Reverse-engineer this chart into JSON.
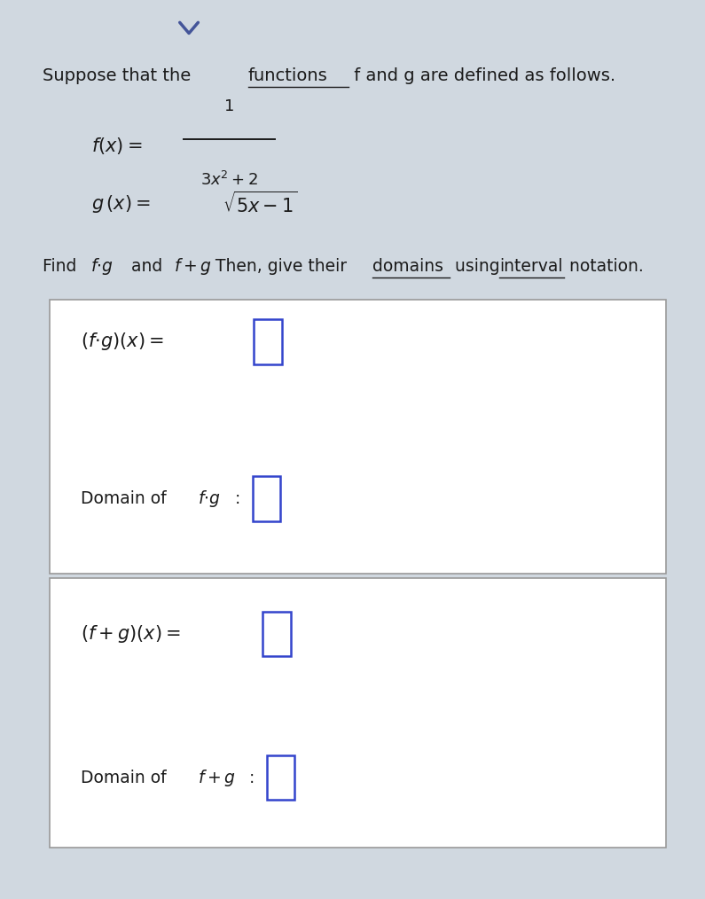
{
  "bg_color": "#d0d8e0",
  "text_color": "#1a1a1a",
  "title_part1": "Suppose that the ",
  "title_underline": "functions",
  "title_part2": " f and g are defined as follows.",
  "find_part1": "Find ",
  "find_part2": " and ",
  "find_part3": ". Then, give their ",
  "find_underline1": "domains",
  "find_part4": " using ",
  "find_underline2": "interval",
  "find_part5": " notation.",
  "fg_expr": "$(f{\\cdot}g)(x) = $",
  "domain_fg": "Domain of $f{\\cdot}g$ : ",
  "fplusg_expr": "$(f + g)(x) = $",
  "domain_fplusg": "Domain of $f + g$ : ",
  "box_edge_color": "#999999",
  "blue_box_color": "#3344cc"
}
